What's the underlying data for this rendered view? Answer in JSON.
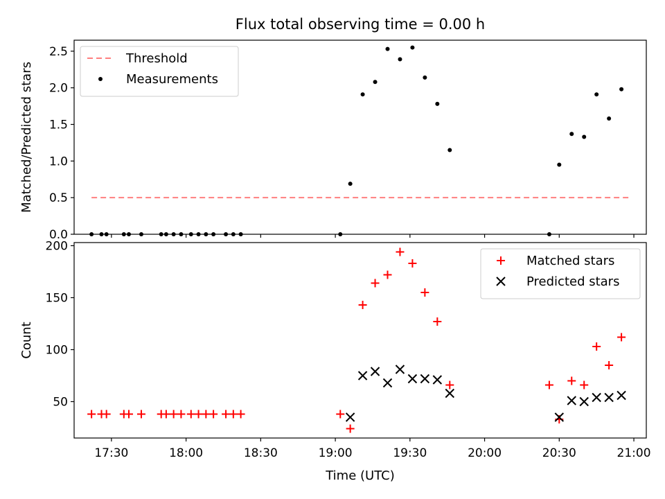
{
  "figure_title": "Flux total observing time = 0.00 h",
  "x_axis": {
    "label": "Time (UTC)",
    "range": [
      "17:15",
      "21:05"
    ],
    "ticks": [
      "17:30",
      "18:00",
      "18:30",
      "19:00",
      "19:30",
      "20:00",
      "20:30",
      "21:00"
    ]
  },
  "chart_data": [
    {
      "type": "scatter",
      "panel": "top",
      "ylabel": "Matched/Predicted stars",
      "ylim": [
        0,
        2.65
      ],
      "yticks": [
        "0.0",
        "0.5",
        "1.0",
        "1.5",
        "2.0",
        "2.5"
      ],
      "legend_position": "top-left",
      "threshold": {
        "name": "Threshold",
        "color": "#ff7f7f",
        "style": "dashed",
        "value": 0.5,
        "x_start": "17:22",
        "x_end": "20:58"
      },
      "series": [
        {
          "name": "Measurements",
          "color": "#000000",
          "marker": "dot",
          "x": [
            "17:22",
            "17:26",
            "17:28",
            "17:35",
            "17:37",
            "17:42",
            "17:50",
            "17:52",
            "17:55",
            "17:58",
            "18:02",
            "18:05",
            "18:08",
            "18:11",
            "18:16",
            "18:19",
            "18:22",
            "19:02",
            "19:06",
            "19:11",
            "19:16",
            "19:21",
            "19:26",
            "19:31",
            "19:36",
            "19:41",
            "19:46",
            "20:26",
            "20:30",
            "20:35",
            "20:40",
            "20:45",
            "20:50",
            "20:55"
          ],
          "y": [
            0,
            0,
            0,
            0,
            0,
            0,
            0,
            0,
            0,
            0,
            0,
            0,
            0,
            0,
            0,
            0,
            0,
            0,
            0.69,
            1.91,
            2.08,
            2.53,
            2.39,
            2.55,
            2.14,
            1.78,
            1.15,
            0,
            0.95,
            1.37,
            1.33,
            1.91,
            1.58,
            1.98
          ]
        }
      ]
    },
    {
      "type": "scatter",
      "panel": "bottom",
      "ylabel": "Count",
      "ylim": [
        15,
        203
      ],
      "yticks": [
        "50",
        "100",
        "150",
        "200"
      ],
      "legend_position": "top-right",
      "series": [
        {
          "name": "Matched stars",
          "color": "#ff0000",
          "marker": "plus",
          "x": [
            "17:22",
            "17:26",
            "17:28",
            "17:35",
            "17:37",
            "17:42",
            "17:50",
            "17:52",
            "17:55",
            "17:58",
            "18:02",
            "18:05",
            "18:08",
            "18:11",
            "18:16",
            "18:19",
            "18:22",
            "19:02",
            "19:06",
            "19:11",
            "19:16",
            "19:21",
            "19:26",
            "19:31",
            "19:36",
            "19:41",
            "19:46",
            "20:26",
            "20:30",
            "20:35",
            "20:40",
            "20:45",
            "20:50",
            "20:55"
          ],
          "y": [
            38,
            38,
            38,
            38,
            38,
            38,
            38,
            38,
            38,
            38,
            38,
            38,
            38,
            38,
            38,
            38,
            38,
            38,
            24,
            143,
            164,
            172,
            194,
            183,
            155,
            127,
            66,
            66,
            33,
            70,
            66,
            103,
            85,
            112
          ]
        },
        {
          "name": "Predicted stars",
          "color": "#000000",
          "marker": "x",
          "x": [
            "19:06",
            "19:11",
            "19:16",
            "19:21",
            "19:26",
            "19:31",
            "19:36",
            "19:41",
            "19:46",
            "20:30",
            "20:35",
            "20:40",
            "20:45",
            "20:50",
            "20:55"
          ],
          "y": [
            35,
            75,
            79,
            68,
            81,
            72,
            72,
            71,
            58,
            35,
            51,
            50,
            54,
            54,
            56
          ]
        }
      ]
    }
  ]
}
